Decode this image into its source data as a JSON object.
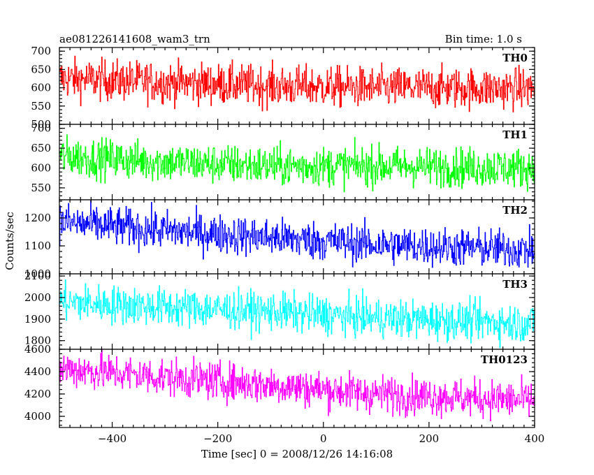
{
  "header": {
    "left_title": "ae081226141608_wam3_trn",
    "right_title": "Bin time: 1.0 s"
  },
  "chart_data": {
    "type": "line",
    "xlabel": "Time [sec] 0 = 2008/12/26 14:16:08",
    "ylabel": "Counts/sec",
    "xlim": [
      -500,
      400
    ],
    "x_tick_values": [
      -400,
      -200,
      0,
      200,
      400
    ],
    "x_tick_labels": [
      "−400",
      "−200",
      "0",
      "200",
      "400"
    ],
    "panels": [
      {
        "name": "TH0",
        "color": "#ff0000",
        "ylim": [
          500,
          710
        ],
        "y_ticks": [
          500,
          550,
          600,
          650,
          700
        ],
        "y_tick_labels": [
          "500",
          "550",
          "600",
          "650",
          "700"
        ],
        "trend": [
          [
            -500,
            625
          ],
          [
            -300,
            615
          ],
          [
            -100,
            605
          ],
          [
            100,
            600
          ],
          [
            400,
            598
          ]
        ],
        "noise": 28
      },
      {
        "name": "TH1",
        "color": "#00ff00",
        "ylim": [
          520,
          710
        ],
        "y_ticks": [
          550,
          600,
          650,
          700
        ],
        "y_tick_labels": [
          "550",
          "600",
          "650",
          "700"
        ],
        "trend": [
          [
            -500,
            630
          ],
          [
            -300,
            615
          ],
          [
            -100,
            605
          ],
          [
            100,
            605
          ],
          [
            400,
            600
          ]
        ],
        "noise": 25
      },
      {
        "name": "TH2",
        "color": "#0000ff",
        "ylim": [
          1000,
          1265
        ],
        "y_ticks": [
          1000,
          1100,
          1200
        ],
        "y_tick_labels": [
          "1000",
          "1100",
          "1200"
        ],
        "trend": [
          [
            -500,
            1185
          ],
          [
            -300,
            1155
          ],
          [
            -100,
            1130
          ],
          [
            100,
            1105
          ],
          [
            400,
            1085
          ]
        ],
        "noise": 35
      },
      {
        "name": "TH3",
        "color": "#00ffff",
        "ylim": [
          1760,
          2110
        ],
        "y_ticks": [
          1800,
          1900,
          2000,
          2100
        ],
        "y_tick_labels": [
          "1800",
          "1900",
          "2000",
          "2100"
        ],
        "trend": [
          [
            -500,
            1980
          ],
          [
            -300,
            1955
          ],
          [
            -100,
            1935
          ],
          [
            100,
            1905
          ],
          [
            400,
            1880
          ]
        ],
        "noise": 45
      },
      {
        "name": "TH0123",
        "color": "#ff00ff",
        "ylim": [
          3900,
          4600
        ],
        "y_ticks": [
          4000,
          4200,
          4400,
          4600
        ],
        "y_tick_labels": [
          "4000",
          "4200",
          "4400",
          "4600"
        ],
        "trend": [
          [
            -500,
            4430
          ],
          [
            -300,
            4350
          ],
          [
            -100,
            4280
          ],
          [
            100,
            4200
          ],
          [
            400,
            4140
          ]
        ],
        "noise": 85
      }
    ]
  }
}
